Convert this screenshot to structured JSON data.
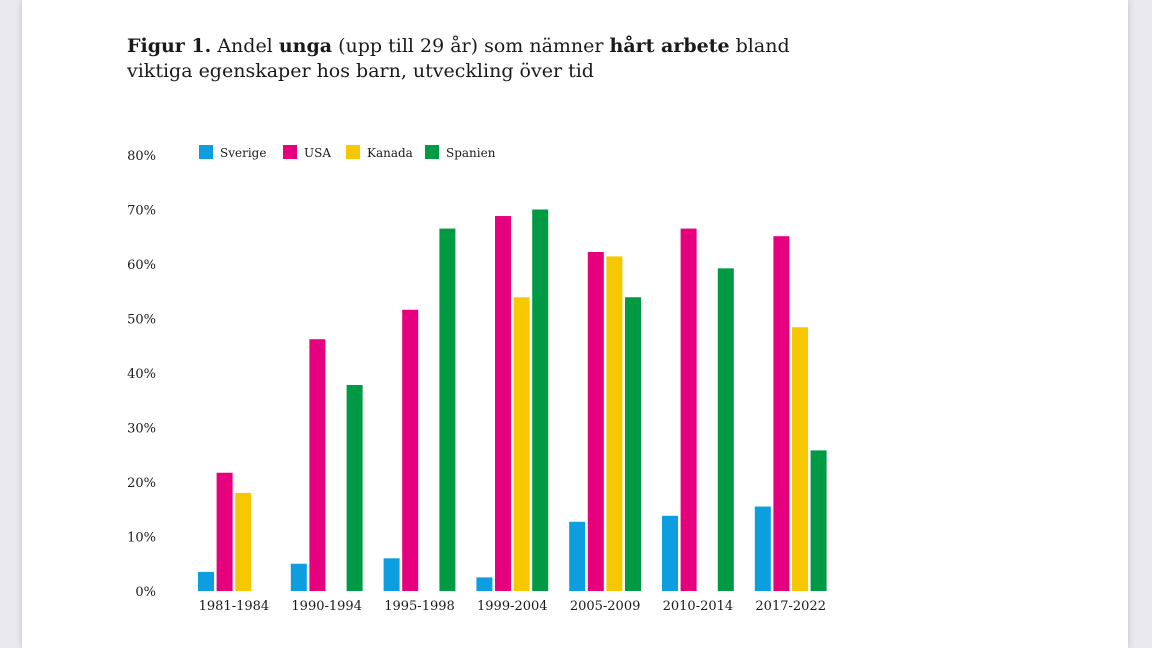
{
  "caption": {
    "lead": "Figur 1.",
    "t1": " Andel ",
    "b1": "unga",
    "t2": " (upp till 29 år) som nämner ",
    "b2": "hårt arbete",
    "t3": " bland viktiga egenskaper hos barn, utveckling över tid"
  },
  "chart_data": {
    "type": "bar",
    "title": "",
    "xlabel": "",
    "ylabel": "",
    "ylim": [
      0,
      80
    ],
    "yticks": [
      "0%",
      "10%",
      "20%",
      "30%",
      "40%",
      "50%",
      "60%",
      "70%",
      "80%"
    ],
    "grid": false,
    "legend_position": "top-left",
    "categories": [
      "1981-1984",
      "1990-1994",
      "1995-1998",
      "1999-2004",
      "2005-2009",
      "2010-2014",
      "2017-2022"
    ],
    "series": [
      {
        "name": "Sverige",
        "color": "#0d9ee0",
        "values": [
          3.5,
          5,
          6,
          2.5,
          12.7,
          13.8,
          15.5
        ]
      },
      {
        "name": "USA",
        "color": "#e6007e",
        "values": [
          21.7,
          46.2,
          51.6,
          68.8,
          62.2,
          66.5,
          65.1
        ]
      },
      {
        "name": "Kanada",
        "color": "#f7c800",
        "values": [
          18,
          null,
          null,
          53.9,
          61.4,
          null,
          48.4
        ]
      },
      {
        "name": "Spanien",
        "color": "#009a44",
        "values": [
          null,
          37.8,
          66.5,
          70,
          53.9,
          59.2,
          25.8
        ]
      }
    ]
  }
}
